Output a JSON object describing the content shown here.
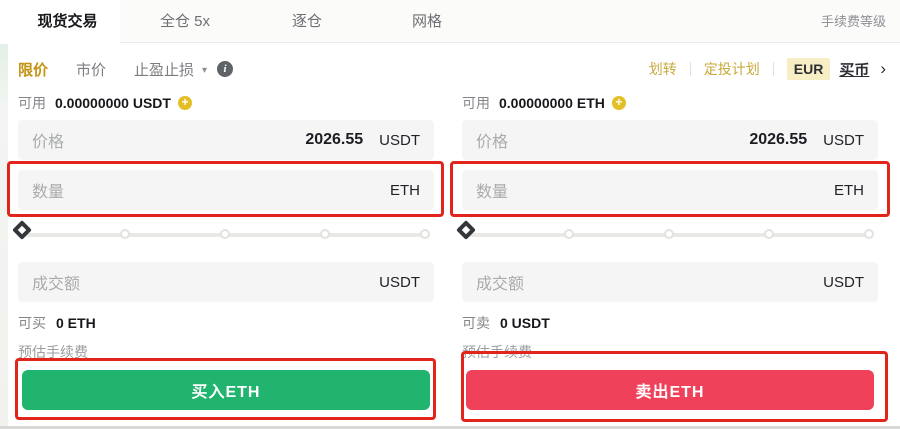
{
  "tabbar": {
    "tabs": [
      {
        "label": "现货交易",
        "active": true
      },
      {
        "label": "全仓 5x",
        "active": false
      },
      {
        "label": "逐仓",
        "active": false
      },
      {
        "label": "网格",
        "active": false
      }
    ],
    "fee_level_label": "手续费等级"
  },
  "ordertype_bar": {
    "types": [
      {
        "label": "限价",
        "active": true
      },
      {
        "label": "市价",
        "active": false
      },
      {
        "label": "止盈止损",
        "active": false,
        "has_dropdown": true
      }
    ],
    "caret": "▾",
    "info_icon": "i",
    "links": {
      "transfer": "划转",
      "auto_invest": "定投计划"
    },
    "currency": "EUR",
    "buy_coin": "买币",
    "chevron": "›"
  },
  "buy_panel": {
    "available_label": "可用",
    "available_value": "0.00000000 USDT",
    "plus_icon": "+",
    "price_label": "价格",
    "price_value": "2026.55",
    "price_unit": "USDT",
    "amount_label": "数量",
    "amount_unit": "ETH",
    "total_label": "成交额",
    "total_unit": "USDT",
    "max_label": "可买",
    "max_value": "0 ETH",
    "fee_label": "预估手续费",
    "button_label": "买入ETH"
  },
  "sell_panel": {
    "available_label": "可用",
    "available_value": "0.00000000 ETH",
    "plus_icon": "+",
    "price_label": "价格",
    "price_value": "2026.55",
    "price_unit": "USDT",
    "amount_label": "数量",
    "amount_unit": "ETH",
    "total_label": "成交额",
    "total_unit": "USDT",
    "max_label": "可卖",
    "max_value": "0 USDT",
    "fee_label": "预估手续费",
    "button_label": "卖出ETH"
  },
  "slider": {
    "position_percent": 0,
    "stops_percent": [
      0,
      25,
      50,
      75,
      100
    ]
  },
  "colors": {
    "accent_gold": "#c49313",
    "buy_green": "#20b46e",
    "sell_red": "#ef4159",
    "annotation_red": "#e2251b",
    "field_bg": "#f5f5f5"
  }
}
